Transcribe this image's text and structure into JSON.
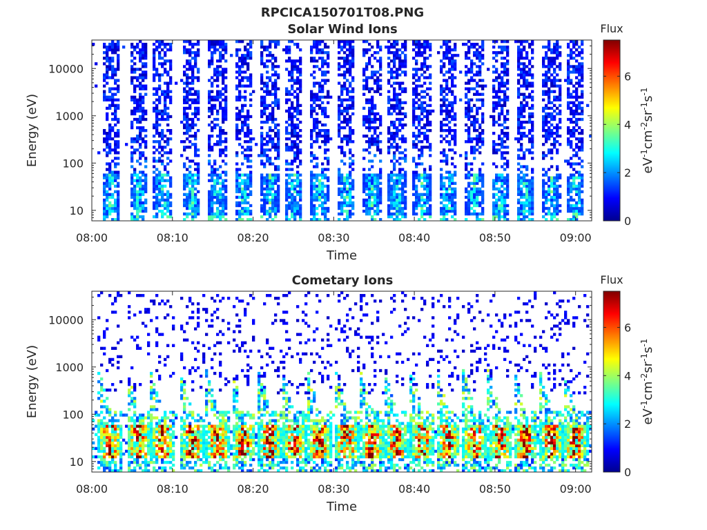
{
  "figure_title": "RPCICA150701T08.PNG",
  "chart_data": [
    {
      "type": "heatmap",
      "title": "Solar Wind Ions",
      "xlabel": "Time",
      "ylabel": "Energy (eV)",
      "x_tick_labels": [
        "08:00",
        "08:10",
        "08:20",
        "08:30",
        "08:40",
        "08:50",
        "09:00"
      ],
      "x_tick_minutes": [
        0,
        10,
        20,
        30,
        40,
        50,
        60
      ],
      "xlim_minutes": [
        0,
        62
      ],
      "y_scale": "log",
      "ylim": [
        6,
        40000
      ],
      "y_tick_labels": [
        "10",
        "100",
        "1000",
        "10000"
      ],
      "y_tick_values": [
        10,
        100,
        1000,
        10000
      ],
      "colorbar": {
        "label": "Flux",
        "unit": "eV-1cm-2sr-1s-1",
        "range": [
          0,
          7.5
        ],
        "ticks": [
          "0",
          "2",
          "4",
          "6"
        ]
      },
      "burst_center_minutes": [
        2.3,
        5.8,
        8.8,
        12.4,
        15.6,
        18.8,
        22.1,
        25.1,
        28.2,
        31.6,
        34.8,
        37.8,
        41.0,
        44.2,
        47.5,
        50.6,
        53.8,
        57.0,
        60.0
      ],
      "peak_flux": 4.5
    },
    {
      "type": "heatmap",
      "title": "Cometary Ions",
      "xlabel": "Time",
      "ylabel": "Energy (eV)",
      "x_tick_labels": [
        "08:00",
        "08:10",
        "08:20",
        "08:30",
        "08:40",
        "08:50",
        "09:00"
      ],
      "x_tick_minutes": [
        0,
        10,
        20,
        30,
        40,
        50,
        60
      ],
      "xlim_minutes": [
        0,
        62
      ],
      "y_scale": "log",
      "ylim": [
        6,
        40000
      ],
      "y_tick_labels": [
        "10",
        "100",
        "1000",
        "10000"
      ],
      "y_tick_values": [
        10,
        100,
        1000,
        10000
      ],
      "colorbar": {
        "label": "Flux",
        "unit": "eV-1cm-2sr-1s-1",
        "range": [
          0,
          7.5
        ],
        "ticks": [
          "0",
          "2",
          "4",
          "6"
        ]
      },
      "burst_center_minutes": [
        2.3,
        5.8,
        8.8,
        12.4,
        15.6,
        18.8,
        22.1,
        25.1,
        28.2,
        31.6,
        34.8,
        37.8,
        41.0,
        44.2,
        47.5,
        50.6,
        53.8,
        57.0,
        60.0
      ],
      "peak_flux": 7.0
    }
  ],
  "colorbar_unit_parts": [
    "eV",
    "-1",
    "cm",
    "-2",
    "sr",
    "-1",
    "s",
    "-1"
  ]
}
